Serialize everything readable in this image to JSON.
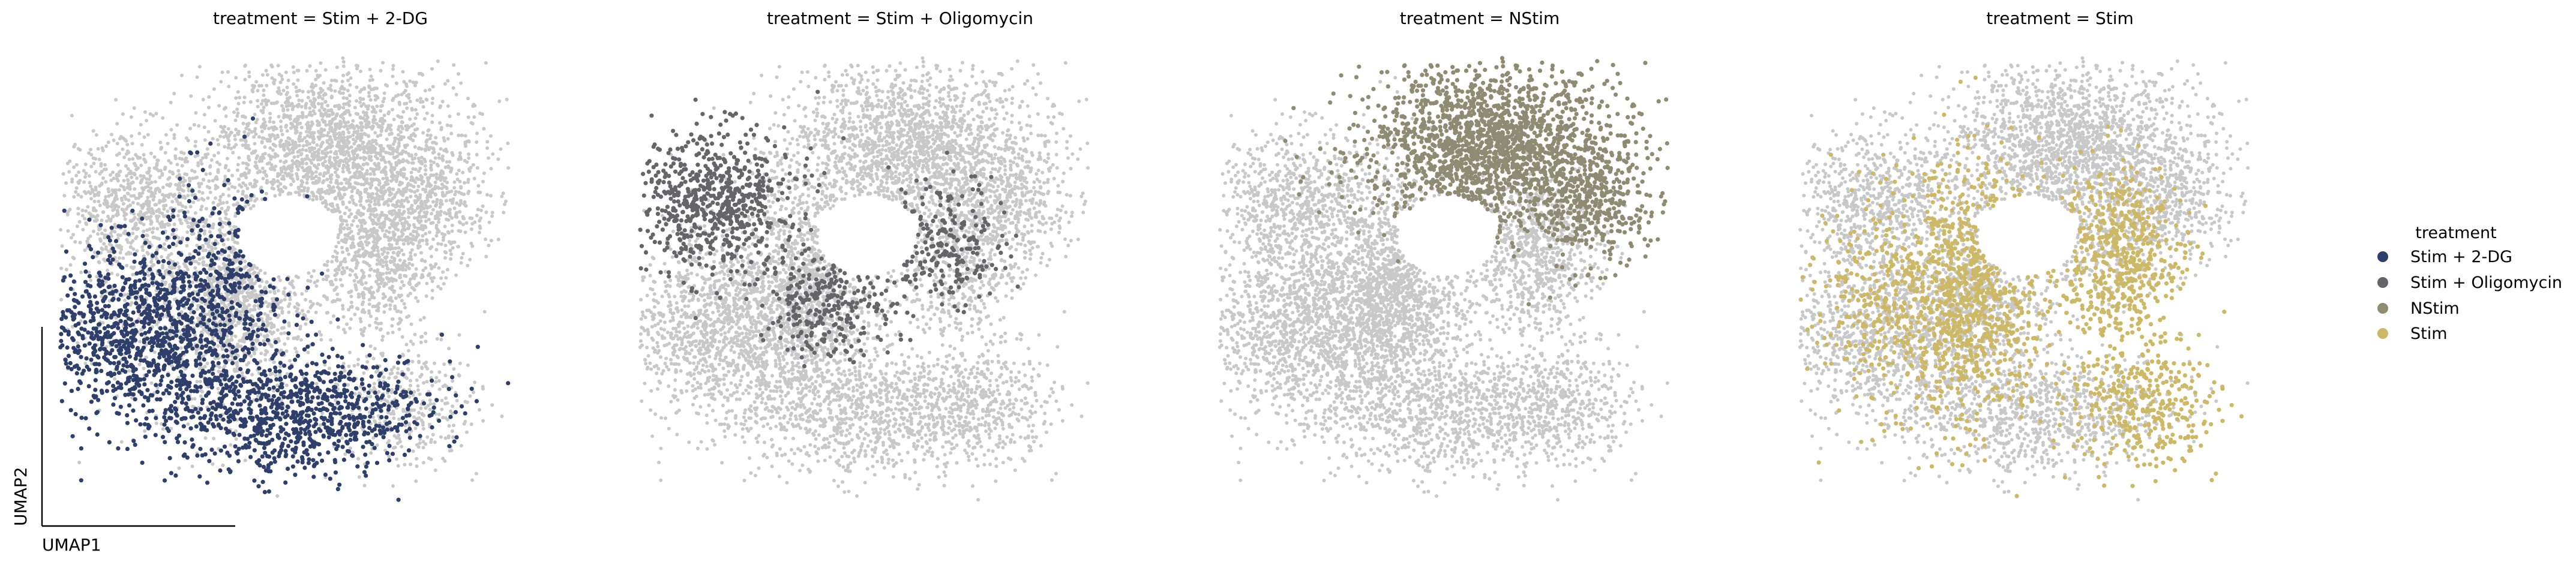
{
  "chart_data": {
    "type": "scatter",
    "embedding": "UMAP",
    "xlabel": "UMAP1",
    "ylabel": "UMAP2",
    "background_color": "#c8c8c8",
    "panels": [
      {
        "title": "treatment = Stim + 2-DG",
        "highlight": "Stim + 2-DG"
      },
      {
        "title": "treatment = Stim + Oligomycin",
        "highlight": "Stim + Oligomycin"
      },
      {
        "title": "treatment = NStim",
        "highlight": "NStim"
      },
      {
        "title": "treatment = Stim",
        "highlight": "Stim"
      }
    ],
    "legend": {
      "title": "treatment",
      "placement": "right",
      "entries": [
        {
          "label": "Stim + 2-DG",
          "color": "#2f3f6b"
        },
        {
          "label": "Stim + Oligomycin",
          "color": "#646469"
        },
        {
          "label": "NStim",
          "color": "#8f8a72"
        },
        {
          "label": "Stim",
          "color": "#cdb865"
        }
      ]
    }
  }
}
